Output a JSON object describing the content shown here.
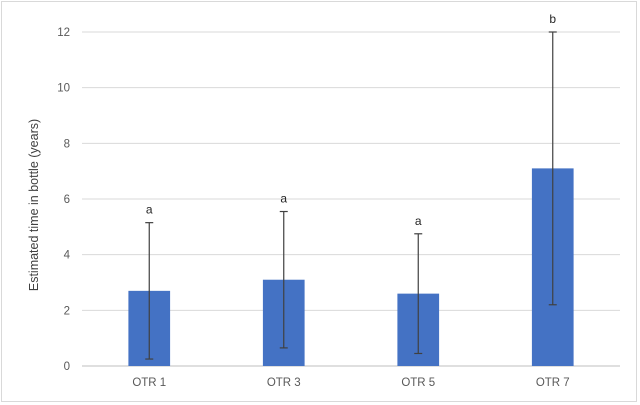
{
  "chart_data": {
    "type": "bar",
    "title": "",
    "xlabel": "",
    "ylabel": "Estimated time in bottle (years)",
    "ylim": [
      0,
      12
    ],
    "yticks": [
      0,
      2,
      4,
      6,
      8,
      10,
      12
    ],
    "grid": true,
    "legend": "none",
    "bar_color": "#4472c4",
    "grid_color": "#d9d9d9",
    "error_bar_color": "#404040",
    "categories": [
      "OTR 1",
      "OTR 3",
      "OTR 5",
      "OTR 7"
    ],
    "values": [
      2.7,
      3.1,
      2.6,
      7.1
    ],
    "error_low": [
      0.25,
      0.65,
      0.45,
      2.2
    ],
    "error_high": [
      5.15,
      5.55,
      4.75,
      12.0
    ],
    "significance_letters": [
      "a",
      "a",
      "a",
      "b"
    ]
  }
}
